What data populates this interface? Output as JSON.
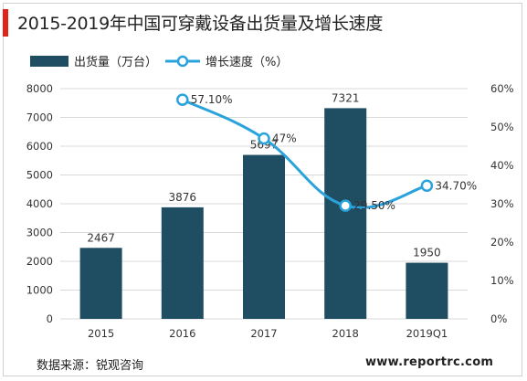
{
  "title": "2015-2019年中国可穿戴设备出货量及增长速度",
  "colors": {
    "accent": "#e2231a",
    "bar": "#1f4e62",
    "line": "#2aa3dc",
    "grid": "#d9d9d9",
    "text": "#333333"
  },
  "source": "数据来源：锐观咨询",
  "website": "www.reportrc.com",
  "chart_data": {
    "type": "bar",
    "categories": [
      "2015",
      "2016",
      "2017",
      "2018",
      "2019Q1"
    ],
    "series": [
      {
        "name": "出货量（万台）",
        "type": "bar",
        "axis": "left",
        "values": [
          2467,
          3876,
          5697,
          7321,
          1950
        ],
        "labels": [
          "2467",
          "3876",
          "5697",
          "7321",
          "1950"
        ]
      },
      {
        "name": "增长速度（%）",
        "type": "line",
        "axis": "right",
        "values": [
          null,
          57.1,
          47,
          29.5,
          34.7
        ],
        "labels": [
          null,
          "57.10%",
          "47%",
          "29.50%",
          "34.70%"
        ]
      }
    ],
    "y_left": {
      "min": 0,
      "max": 8000,
      "step": 1000,
      "ticks": [
        "0",
        "1000",
        "2000",
        "3000",
        "4000",
        "5000",
        "6000",
        "7000",
        "8000"
      ]
    },
    "y_right": {
      "min": 0,
      "max": 60,
      "step": 10,
      "ticks": [
        "0%",
        "10%",
        "20%",
        "30%",
        "40%",
        "50%",
        "60%"
      ]
    },
    "legend_position": "top-left",
    "grid": true
  }
}
